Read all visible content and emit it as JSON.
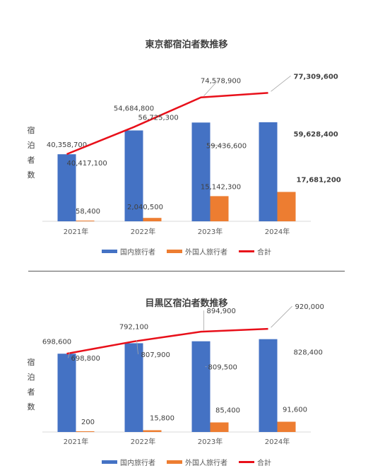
{
  "chart_data": [
    {
      "type": "bar",
      "title": "東京都宿泊者数推移",
      "ylabel": "宿泊者数",
      "xlabel": "",
      "categories": [
        "2021年",
        "2022年",
        "2023年",
        "2024年"
      ],
      "ylim": [
        0,
        80000000
      ],
      "grid": false,
      "legend_position": "bottom",
      "series": [
        {
          "name": "国内旅行者",
          "kind": "bar",
          "color": "#4472C4",
          "values": [
            40358700,
            54684800,
            59436600,
            59628400
          ],
          "labels": [
            "40,358,700",
            "54,684,800",
            "59,436,600",
            "59,628,400"
          ]
        },
        {
          "name": "外国人旅行者",
          "kind": "bar",
          "color": "#ED7D31",
          "values": [
            58400,
            2040500,
            15142300,
            17681200
          ],
          "labels": [
            "58,400",
            "2,040,500",
            "15,142,300",
            "17,681,200"
          ]
        },
        {
          "name": "合計",
          "kind": "line",
          "color": "#E8101A",
          "values": [
            40417100,
            56725300,
            74578900,
            77309600
          ],
          "labels": [
            "40,417,100",
            "56,725,300",
            "74,578,900",
            "77,309,600"
          ]
        }
      ]
    },
    {
      "type": "bar",
      "title": "目黒区宿泊者数推移",
      "ylabel": "宿泊者数",
      "xlabel": "",
      "categories": [
        "2021年",
        "2022年",
        "2023年",
        "2024年"
      ],
      "ylim": [
        0,
        940000
      ],
      "grid": false,
      "legend_position": "bottom",
      "series": [
        {
          "name": "国内旅行者",
          "kind": "bar",
          "color": "#4472C4",
          "values": [
            698600,
            792100,
            809500,
            828400
          ],
          "labels": [
            "698,600",
            "792,100",
            "809,500",
            "828,400"
          ]
        },
        {
          "name": "外国人旅行者",
          "kind": "bar",
          "color": "#ED7D31",
          "values": [
            200,
            15800,
            85400,
            91600
          ],
          "labels": [
            "200",
            "15,800",
            "85,400",
            "91,600"
          ]
        },
        {
          "name": "合計",
          "kind": "line",
          "color": "#E8101A",
          "values": [
            698800,
            807900,
            894900,
            920000
          ],
          "labels": [
            "698,800",
            "807,900",
            "894,900",
            "920,000"
          ]
        }
      ]
    }
  ]
}
